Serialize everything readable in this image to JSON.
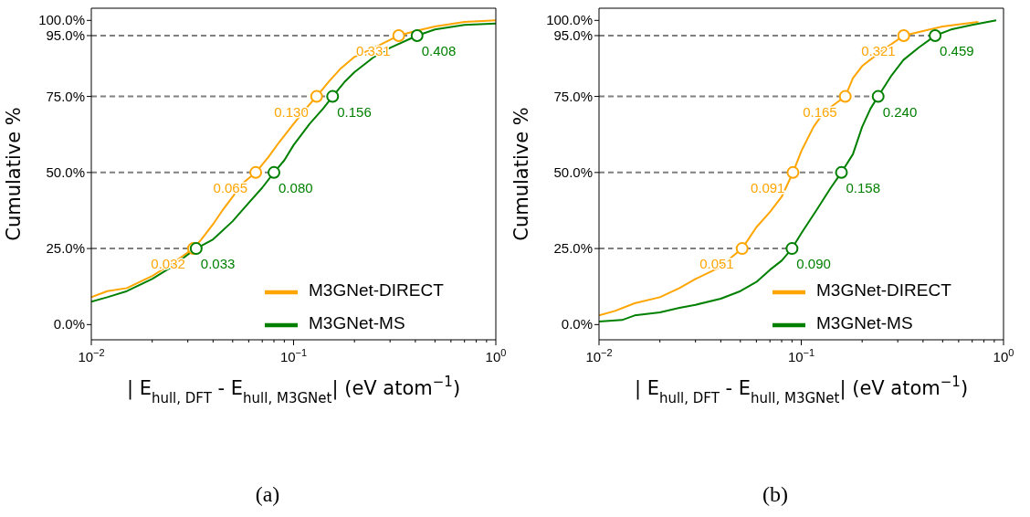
{
  "chart_data": [
    {
      "type": "line",
      "xlabel": "| E$_{hull, DFT}$ - E$_{hull, M3GNet}$| (eV atom$^{−1}$)",
      "ylabel": "Cumulative %",
      "log": "x",
      "xlim": [
        0.01,
        1
      ],
      "ylim": [
        -5,
        104
      ],
      "annotations": [
        "(a)",
        {
          "text": "0.032",
          "x": 0.032,
          "y": 25
        },
        {
          "text": "0.065",
          "x": 0.065,
          "y": 50
        },
        {
          "text": "0.130",
          "x": 0.13,
          "y": 75
        },
        {
          "text": "0.331",
          "x": 0.331,
          "y": 95
        },
        {
          "text": "0.033",
          "x": 0.033,
          "y": 25
        },
        {
          "text": "0.080",
          "x": 0.08,
          "y": 50
        },
        {
          "text": "0.156",
          "x": 0.156,
          "y": 75
        },
        {
          "text": "0.408",
          "x": 0.408,
          "y": 95
        }
      ],
      "xticks": [
        {
          "value": 0.01,
          "label": "10$^{−2}$"
        },
        {
          "value": 0.02,
          "label": null
        },
        {
          "value": 0.03,
          "label": null
        },
        {
          "value": 0.04,
          "label": null
        },
        {
          "value": 0.05,
          "label": null
        },
        {
          "value": 0.06,
          "label": null
        },
        {
          "value": 0.07,
          "label": null
        },
        {
          "value": 0.08,
          "label": null
        },
        {
          "value": 0.09,
          "label": null
        },
        {
          "value": 0.1,
          "label": "10$^{−1}$"
        },
        {
          "value": 0.2,
          "label": null
        },
        {
          "value": 0.3,
          "label": null
        },
        {
          "value": 0.4,
          "label": null
        },
        {
          "value": 0.5,
          "label": null
        },
        {
          "value": 0.6,
          "label": null
        },
        {
          "value": 0.7,
          "label": null
        },
        {
          "value": 0.8,
          "label": null
        },
        {
          "value": 0.9,
          "label": null
        },
        {
          "value": 1,
          "label": "10$^{0}$"
        }
      ],
      "yticks": [
        {
          "value": 0,
          "label": "0.0%"
        },
        {
          "value": 25,
          "label": "25.0%"
        },
        {
          "value": 50,
          "label": "50.0%"
        },
        {
          "value": 75,
          "label": "75.0%"
        },
        {
          "value": 95,
          "label": "95.0%"
        },
        {
          "value": 100,
          "label": "100.0%"
        }
      ],
      "legend": "bottom right",
      "grid": false,
      "ref_lines": [
        {
          "axis": "y",
          "value": 25,
          "color": "#808080",
          "line_style": "dashed"
        },
        {
          "axis": "y",
          "value": 50,
          "color": "#808080",
          "line_style": "dashed"
        },
        {
          "axis": "y",
          "value": 75,
          "color": "#808080",
          "line_style": "dashed"
        },
        {
          "axis": "y",
          "value": 95,
          "color": "#808080",
          "line_style": "dashed"
        }
      ],
      "series": [
        {
          "name": "M3GNet-DIRECT",
          "color": "#ffa500",
          "x": [
            0.01,
            0.012,
            0.015,
            0.02,
            0.025,
            0.032,
            0.035,
            0.04,
            0.045,
            0.05,
            0.055,
            0.065,
            0.075,
            0.085,
            0.1,
            0.115,
            0.13,
            0.15,
            0.17,
            0.2,
            0.25,
            0.331,
            0.4,
            0.5,
            0.7,
            1
          ],
          "values": [
            9,
            11,
            12,
            16,
            20,
            25,
            28,
            33,
            38,
            42,
            46,
            50,
            55,
            60,
            66,
            71,
            75,
            80,
            84,
            88,
            91,
            95,
            96.5,
            98,
            99.5,
            100
          ]
        },
        {
          "name": "M3GNet-MS",
          "color": "#008000",
          "x": [
            0.01,
            0.012,
            0.015,
            0.02,
            0.025,
            0.03,
            0.033,
            0.04,
            0.05,
            0.06,
            0.07,
            0.08,
            0.09,
            0.1,
            0.12,
            0.14,
            0.156,
            0.18,
            0.2,
            0.25,
            0.3,
            0.408,
            0.5,
            0.7,
            1
          ],
          "values": [
            7.5,
            9,
            11,
            15,
            19,
            23,
            25,
            28,
            34,
            40,
            45,
            50,
            54,
            59,
            66,
            71,
            75,
            80,
            83,
            88,
            91,
            95,
            97,
            98.5,
            99
          ]
        },
        {
          "type": "scatter",
          "marker": "circle",
          "color": "#ffa500",
          "x": [
            0.032,
            0.065,
            0.13,
            0.331
          ],
          "values": [
            25,
            50,
            75,
            95
          ]
        },
        {
          "type": "scatter",
          "marker": "circle",
          "color": "#008000",
          "x": [
            0.033,
            0.08,
            0.156,
            0.408
          ],
          "values": [
            25,
            50,
            75,
            95
          ]
        }
      ]
    },
    {
      "type": "line",
      "xlabel": "| E$_{hull, DFT}$ - E$_{hull, M3GNet}$| (eV atom$^{−1}$)",
      "ylabel": "Cumulative %",
      "log": "x",
      "xlim": [
        0.01,
        1
      ],
      "ylim": [
        -5,
        104
      ],
      "annotations": [
        "(b)",
        {
          "text": "0.051",
          "x": 0.051,
          "y": 25
        },
        {
          "text": "0.091",
          "x": 0.091,
          "y": 50
        },
        {
          "text": "0.165",
          "x": 0.165,
          "y": 75
        },
        {
          "text": "0.321",
          "x": 0.321,
          "y": 95
        },
        {
          "text": "0.090",
          "x": 0.09,
          "y": 25
        },
        {
          "text": "0.158",
          "x": 0.158,
          "y": 50
        },
        {
          "text": "0.240",
          "x": 0.24,
          "y": 75
        },
        {
          "text": "0.459",
          "x": 0.459,
          "y": 95
        }
      ],
      "xticks": [
        {
          "value": 0.01,
          "label": "10$^{−2}$"
        },
        {
          "value": 0.02,
          "label": null
        },
        {
          "value": 0.03,
          "label": null
        },
        {
          "value": 0.04,
          "label": null
        },
        {
          "value": 0.05,
          "label": null
        },
        {
          "value": 0.06,
          "label": null
        },
        {
          "value": 0.07,
          "label": null
        },
        {
          "value": 0.08,
          "label": null
        },
        {
          "value": 0.09,
          "label": null
        },
        {
          "value": 0.1,
          "label": "10$^{−1}$"
        },
        {
          "value": 0.2,
          "label": null
        },
        {
          "value": 0.3,
          "label": null
        },
        {
          "value": 0.4,
          "label": null
        },
        {
          "value": 0.5,
          "label": null
        },
        {
          "value": 0.6,
          "label": null
        },
        {
          "value": 0.7,
          "label": null
        },
        {
          "value": 0.8,
          "label": null
        },
        {
          "value": 0.9,
          "label": null
        },
        {
          "value": 1,
          "label": "10$^{0}$"
        }
      ],
      "yticks": [
        {
          "value": 0,
          "label": "0.0%"
        },
        {
          "value": 25,
          "label": "25.0%"
        },
        {
          "value": 50,
          "label": "50.0%"
        },
        {
          "value": 75,
          "label": "75.0%"
        },
        {
          "value": 95,
          "label": "95.0%"
        },
        {
          "value": 100,
          "label": "100.0%"
        }
      ],
      "legend": "bottom right",
      "grid": false,
      "ref_lines": [
        {
          "axis": "y",
          "value": 25,
          "color": "#808080",
          "line_style": "dashed"
        },
        {
          "axis": "y",
          "value": 50,
          "color": "#808080",
          "line_style": "dashed"
        },
        {
          "axis": "y",
          "value": 75,
          "color": "#808080",
          "line_style": "dashed"
        },
        {
          "axis": "y",
          "value": 95,
          "color": "#808080",
          "line_style": "dashed"
        }
      ],
      "series": [
        {
          "name": "M3GNet-DIRECT",
          "color": "#ffa500",
          "x": [
            0.01,
            0.012,
            0.015,
            0.02,
            0.025,
            0.03,
            0.04,
            0.045,
            0.051,
            0.06,
            0.07,
            0.08,
            0.091,
            0.1,
            0.115,
            0.13,
            0.15,
            0.165,
            0.18,
            0.2,
            0.25,
            0.321,
            0.4,
            0.5,
            0.75
          ],
          "values": [
            3,
            4.5,
            7,
            9,
            12,
            15,
            19,
            22,
            25,
            32,
            37,
            42,
            50,
            57,
            65,
            70,
            73,
            75,
            81,
            85,
            90,
            95,
            96.5,
            98,
            99.5
          ]
        },
        {
          "name": "M3GNet-MS",
          "color": "#008000",
          "x": [
            0.01,
            0.013,
            0.015,
            0.02,
            0.025,
            0.03,
            0.04,
            0.05,
            0.06,
            0.07,
            0.08,
            0.09,
            0.1,
            0.12,
            0.14,
            0.158,
            0.18,
            0.2,
            0.22,
            0.24,
            0.28,
            0.32,
            0.38,
            0.459,
            0.55,
            0.7,
            0.92
          ],
          "values": [
            1,
            1.5,
            3,
            4,
            5.5,
            6.5,
            8.5,
            11,
            14,
            18,
            21,
            25,
            30,
            38,
            45,
            50,
            56,
            65,
            71,
            75,
            82,
            87,
            91,
            95,
            97,
            98.5,
            100
          ]
        },
        {
          "type": "scatter",
          "marker": "circle",
          "color": "#ffa500",
          "x": [
            0.051,
            0.091,
            0.165,
            0.321
          ],
          "values": [
            25,
            50,
            75,
            95
          ]
        },
        {
          "type": "scatter",
          "marker": "circle",
          "color": "#008000",
          "x": [
            0.09,
            0.158,
            0.24,
            0.459
          ],
          "values": [
            25,
            50,
            75,
            95
          ]
        }
      ]
    }
  ]
}
